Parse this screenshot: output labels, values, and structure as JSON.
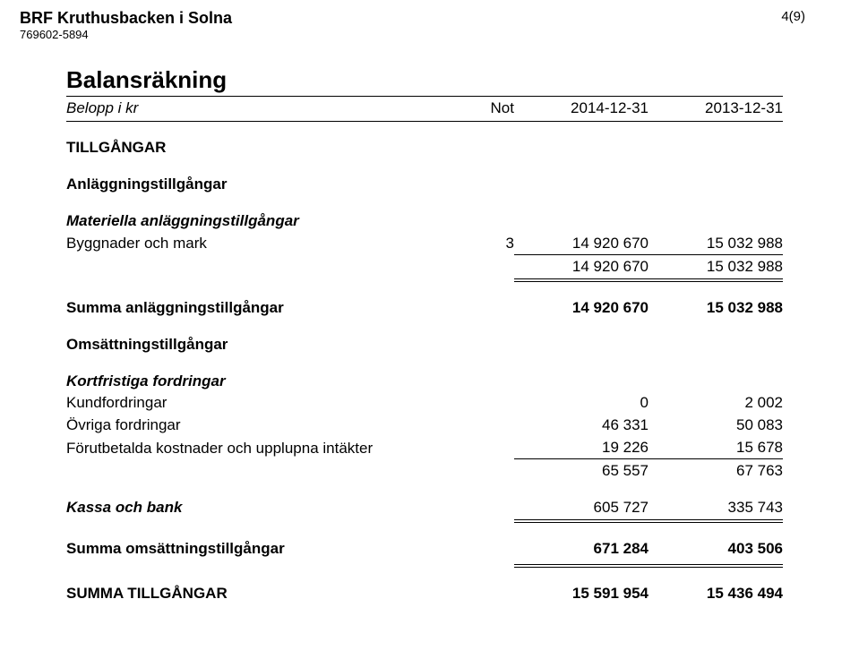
{
  "header": {
    "org_name": "BRF Kruthusbacken i Solna",
    "org_id": "769602-5894",
    "page_number": "4(9)"
  },
  "title": "Balansräkning",
  "col_headers": {
    "label": "Belopp i kr",
    "not": "Not",
    "col_a": "2014-12-31",
    "col_b": "2013-12-31"
  },
  "sections": {
    "assets": {
      "heading": "TILLGÅNGAR",
      "fixed": {
        "heading": "Anläggningstillgångar",
        "tangible": {
          "heading": "Materiella anläggningstillgångar",
          "rows": [
            {
              "label": "Byggnader och mark",
              "note": "3",
              "a": "14 920 670",
              "b": "15 032 988"
            }
          ],
          "subtotal": {
            "a": "14 920 670",
            "b": "15 032 988"
          }
        },
        "total": {
          "label": "Summa anläggningstillgångar",
          "a": "14 920 670",
          "b": "15 032 988"
        }
      },
      "current": {
        "heading": "Omsättningstillgångar",
        "receivables": {
          "heading": "Kortfristiga fordringar",
          "rows": [
            {
              "label": "Kundfordringar",
              "a": "0",
              "b": "2 002"
            },
            {
              "label": "Övriga fordringar",
              "a": "46 331",
              "b": "50 083"
            },
            {
              "label": "Förutbetalda kostnader och upplupna intäkter",
              "a": "19 226",
              "b": "15 678"
            }
          ],
          "subtotal": {
            "a": "65 557",
            "b": "67 763"
          }
        },
        "cash": {
          "label": "Kassa och bank",
          "a": "605 727",
          "b": "335 743"
        },
        "total": {
          "label": "Summa omsättningstillgångar",
          "a": "671 284",
          "b": "403 506"
        }
      },
      "grand_total": {
        "label": "SUMMA TILLGÅNGAR",
        "a": "15 591 954",
        "b": "15 436 494"
      }
    }
  }
}
